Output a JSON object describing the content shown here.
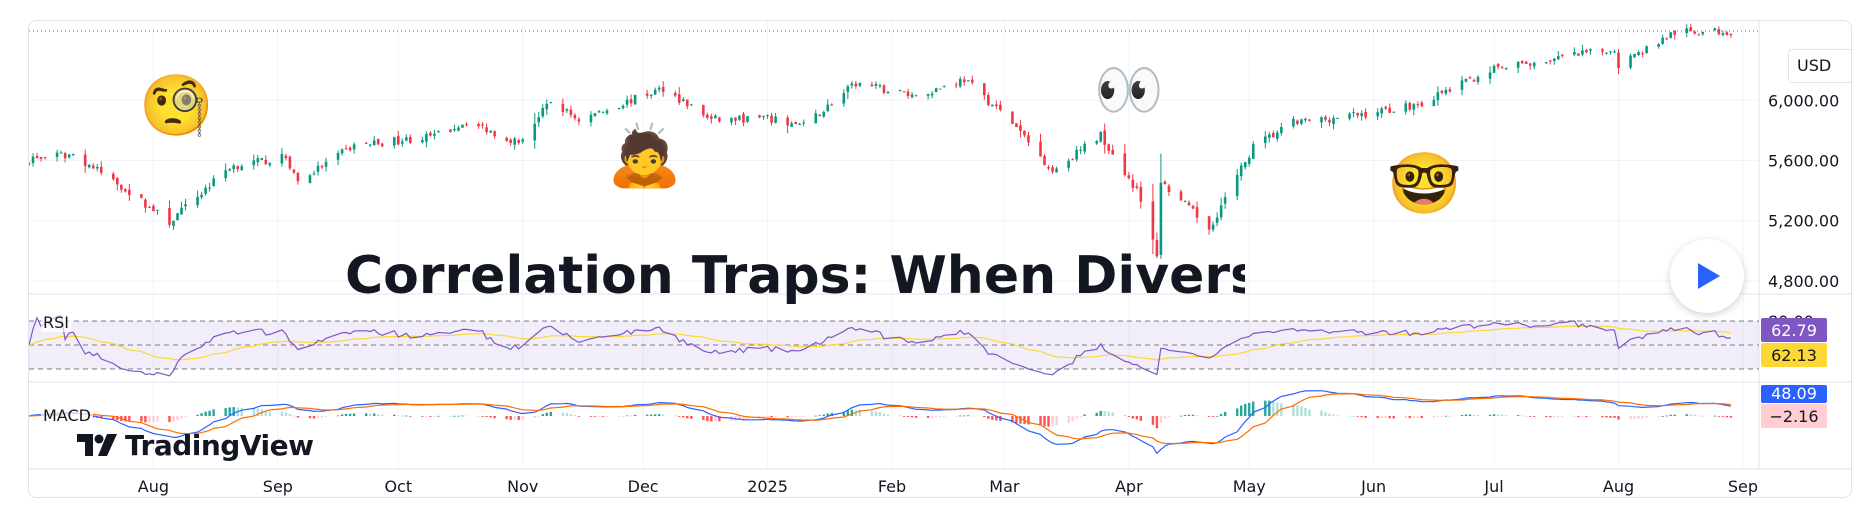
{
  "chart_data": {
    "type": "candlestick",
    "title": "Correlation Traps: When Diversification Isn't Diversifying",
    "currency": "USD",
    "price_axis": {
      "ticks": [
        4800,
        5200,
        5600,
        6000
      ],
      "tick_labels": [
        "4,800.00",
        "5,200.00",
        "5,600.00",
        "6,000.00"
      ],
      "range": [
        4720,
        6500
      ]
    },
    "x_axis": {
      "start": "2024-07-01",
      "end": "2025-09-05",
      "ticks": [
        {
          "label": "Aug",
          "date": "2024-08-01"
        },
        {
          "label": "Sep",
          "date": "2024-09-01"
        },
        {
          "label": "Oct",
          "date": "2024-10-01"
        },
        {
          "label": "Nov",
          "date": "2024-11-01"
        },
        {
          "label": "Dec",
          "date": "2024-12-01"
        },
        {
          "label": "2025",
          "date": "2025-01-01"
        },
        {
          "label": "Feb",
          "date": "2025-02-01"
        },
        {
          "label": "Mar",
          "date": "2025-03-01"
        },
        {
          "label": "Apr",
          "date": "2025-04-01"
        },
        {
          "label": "May",
          "date": "2025-05-01"
        },
        {
          "label": "Jun",
          "date": "2025-06-01"
        },
        {
          "label": "Jul",
          "date": "2025-07-01"
        },
        {
          "label": "Aug",
          "date": "2025-08-01"
        },
        {
          "label": "Sep",
          "date": "2025-09-01"
        }
      ]
    },
    "price_path": [
      {
        "date": "2024-07-01",
        "close": 5610
      },
      {
        "date": "2024-07-12",
        "close": 5640
      },
      {
        "date": "2024-07-24",
        "close": 5430
      },
      {
        "date": "2024-08-05",
        "close": 5190
      },
      {
        "date": "2024-08-20",
        "close": 5560
      },
      {
        "date": "2024-09-03",
        "close": 5620
      },
      {
        "date": "2024-09-06",
        "close": 5460
      },
      {
        "date": "2024-09-20",
        "close": 5700
      },
      {
        "date": "2024-10-10",
        "close": 5760
      },
      {
        "date": "2024-10-18",
        "close": 5860
      },
      {
        "date": "2024-10-31",
        "close": 5720
      },
      {
        "date": "2024-11-08",
        "close": 5990
      },
      {
        "date": "2024-11-15",
        "close": 5870
      },
      {
        "date": "2024-12-06",
        "close": 6080
      },
      {
        "date": "2024-12-18",
        "close": 5870
      },
      {
        "date": "2024-12-31",
        "close": 5880
      },
      {
        "date": "2025-01-10",
        "close": 5830
      },
      {
        "date": "2025-01-23",
        "close": 6110
      },
      {
        "date": "2025-02-07",
        "close": 6030
      },
      {
        "date": "2025-02-19",
        "close": 6140
      },
      {
        "date": "2025-03-03",
        "close": 5850
      },
      {
        "date": "2025-03-13",
        "close": 5530
      },
      {
        "date": "2025-03-25",
        "close": 5770
      },
      {
        "date": "2025-04-03",
        "close": 5400
      },
      {
        "date": "2025-04-08",
        "close": 4980
      },
      {
        "date": "2025-04-09",
        "close": 5460
      },
      {
        "date": "2025-04-21",
        "close": 5150
      },
      {
        "date": "2025-05-02",
        "close": 5690
      },
      {
        "date": "2025-05-12",
        "close": 5850
      },
      {
        "date": "2025-05-30",
        "close": 5910
      },
      {
        "date": "2025-06-13",
        "close": 5980
      },
      {
        "date": "2025-06-30",
        "close": 6200
      },
      {
        "date": "2025-07-15",
        "close": 6270
      },
      {
        "date": "2025-07-31",
        "close": 6340
      },
      {
        "date": "2025-08-01",
        "close": 6240
      },
      {
        "date": "2025-08-15",
        "close": 6450
      },
      {
        "date": "2025-08-29",
        "close": 6460
      }
    ],
    "last_price_line": 6460,
    "indicators": {
      "rsi": {
        "label": "RSI",
        "upper_band": 80,
        "lower_band": 20,
        "upper_label": "80.00",
        "value": 62.79,
        "value_label": "62.79",
        "signal": 62.13,
        "signal_label": "62.13",
        "line_color": "#7e57c2",
        "signal_color": "#fdd835"
      },
      "macd": {
        "label": "MACD",
        "macd_value": 48.09,
        "macd_label": "48.09",
        "hist_value": -2.16,
        "hist_label": "−2.16",
        "macd_color": "#2962ff",
        "signal_color": "#ff6d00"
      }
    },
    "colors": {
      "up": "#089981",
      "down": "#f23645",
      "grid": "#f0f3fa"
    }
  },
  "emojis": [
    {
      "icon": "face-with-monocle-icon",
      "glyph": "🧐"
    },
    {
      "icon": "person-reading-icon",
      "glyph": "🙇"
    },
    {
      "icon": "eyes-icon",
      "glyph": "👀"
    },
    {
      "icon": "nerd-face-icon",
      "glyph": "🤓"
    }
  ],
  "branding": {
    "logo_text": "TradingView"
  }
}
